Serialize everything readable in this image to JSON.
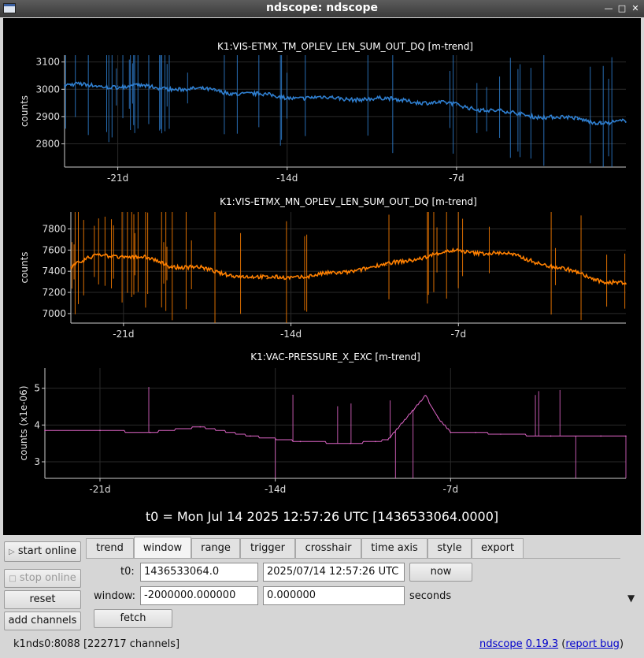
{
  "window": {
    "title": "ndscope: ndscope"
  },
  "plots": [
    {
      "title": "K1:VIS-ETMX_TM_OPLEV_LEN_SUM_OUT_DQ [m-trend]",
      "ylabel": "counts",
      "yticks": [
        "3100",
        "3000",
        "2900",
        "2800"
      ],
      "xticks": [
        "-21d",
        "-14d",
        "-7d"
      ],
      "color": "#2f7fd0"
    },
    {
      "title": "K1:VIS-ETMX_MN_OPLEV_LEN_SUM_OUT_DQ [m-trend]",
      "ylabel": "counts",
      "yticks": [
        "7800",
        "7600",
        "7400",
        "7200",
        "7000"
      ],
      "xticks": [
        "-21d",
        "-14d",
        "-7d"
      ],
      "color": "#ff8000"
    },
    {
      "title": "K1:VAC-PRESSURE_X_EXC [m-trend]",
      "ylabel": "counts (x1e-06)",
      "yticks": [
        "5",
        "4",
        "3"
      ],
      "xticks": [
        "-21d",
        "-14d",
        "-7d"
      ],
      "color": "#e066c8"
    }
  ],
  "chart_data": [
    {
      "type": "line",
      "title": "K1:VIS-ETMX_TM_OPLEV_LEN_SUM_OUT_DQ [m-trend]",
      "ylabel": "counts",
      "xlim": [
        -23.2,
        0
      ],
      "ylim": [
        2715,
        3125
      ],
      "x": [
        -23.2,
        -21,
        -19,
        -17,
        -15,
        -14,
        -13,
        -11,
        -9,
        -8,
        -7,
        -6,
        -5,
        -4,
        -3,
        -2,
        -1,
        0
      ],
      "values": [
        3015,
        3012,
        3005,
        2995,
        2978,
        2972,
        2968,
        2966,
        2960,
        2950,
        2943,
        2928,
        2915,
        2905,
        2898,
        2890,
        2880,
        2880
      ],
      "color": "#2f7fd0"
    },
    {
      "type": "line",
      "title": "K1:VIS-ETMX_MN_OPLEV_LEN_SUM_OUT_DQ [m-trend]",
      "ylabel": "counts",
      "xlim": [
        -23.2,
        0
      ],
      "ylim": [
        6910,
        7960
      ],
      "x": [
        -23.2,
        -22,
        -21,
        -20,
        -19,
        -18,
        -17,
        -16,
        -15,
        -14,
        -13,
        -12,
        -11,
        -10,
        -9,
        -8,
        -7,
        -6,
        -5,
        -4,
        -3,
        -2,
        -1,
        0
      ],
      "values": [
        7440,
        7560,
        7540,
        7520,
        7450,
        7440,
        7380,
        7360,
        7330,
        7350,
        7360,
        7380,
        7430,
        7460,
        7510,
        7560,
        7590,
        7580,
        7560,
        7510,
        7440,
        7380,
        7310,
        7280
      ],
      "color": "#ff8000"
    },
    {
      "type": "line",
      "title": "K1:VAC-PRESSURE_X_EXC [m-trend]",
      "ylabel": "counts (x1e-06)",
      "xlim": [
        -23.2,
        0
      ],
      "ylim": [
        2.55,
        5.55
      ],
      "x": [
        -23.2,
        -21,
        -19,
        -17,
        -15,
        -13,
        -11,
        -10,
        -9.5,
        -8.5,
        -8,
        -7.5,
        -7,
        -6,
        -5,
        -3,
        -1,
        0
      ],
      "values": [
        3.85,
        3.85,
        3.8,
        3.95,
        3.7,
        3.55,
        3.5,
        3.55,
        3.6,
        4.4,
        4.8,
        4.2,
        3.8,
        3.8,
        3.75,
        3.7,
        3.7,
        3.7
      ],
      "color": "#e066c8"
    }
  ],
  "t0_label": "t0 = Mon Jul 14 2025 12:57:26 UTC [1436533064.0000]",
  "controls": {
    "start_online": "start online",
    "stop_online": "stop online",
    "reset": "reset",
    "add_channels": "add channels"
  },
  "tabs": [
    "trend",
    "window",
    "range",
    "trigger",
    "crosshair",
    "time axis",
    "style",
    "export"
  ],
  "active_tab": "window",
  "window_tab": {
    "t0_label": "t0:",
    "t0_gps": "1436533064.0",
    "t0_utc": "2025/07/14 12:57:26 UTC",
    "now_button": "now",
    "window_label": "window:",
    "window_start": "-2000000.000000",
    "window_end": "0.000000",
    "seconds_label": "seconds",
    "fetch_button": "fetch"
  },
  "status": {
    "server": "k1nds0:8088",
    "channels": "[222717 channels]",
    "app_name": "ndscope",
    "version": "0.19.3",
    "report_bug": "report bug"
  }
}
